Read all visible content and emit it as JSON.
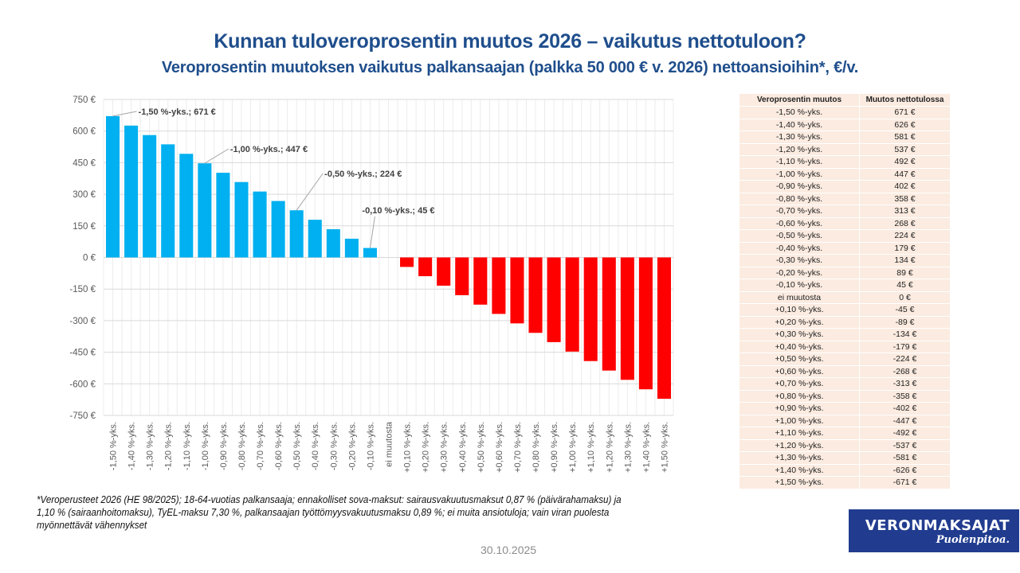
{
  "header": {
    "title": "Kunnan tuloveroprosentin muutos 2026 – vaikutus nettotuloon?",
    "subtitle": "Veroprosentin muutoksen vaikutus palkansaajan (palkka 50 000 € v. 2026) nettoansioihin*, €/v."
  },
  "chart_data": {
    "type": "bar",
    "title": "Veroprosentin muutoksen vaikutus palkansaajan (palkka 50 000 € v. 2026) nettoansioihin*, €/v.",
    "xlabel": "",
    "ylabel": "",
    "ylim": [
      -750,
      750
    ],
    "yticks": [
      750,
      600,
      450,
      300,
      150,
      0,
      -150,
      -300,
      -450,
      -600,
      -750
    ],
    "ytick_labels": [
      "750 €",
      "600 €",
      "450 €",
      "300 €",
      "150 €",
      "0 €",
      "-150 €",
      "-300 €",
      "-450 €",
      "-600 €",
      "-750 €"
    ],
    "grid": true,
    "legend": "none",
    "positive_color": "#00b0f0",
    "negative_color": "#ff0000",
    "categories": [
      "-1,50 %-yks.",
      "-1,40 %-yks.",
      "-1,30 %-yks.",
      "-1,20 %-yks.",
      "-1,10 %-yks.",
      "-1,00 %-yks.",
      "-0,90 %-yks.",
      "-0,80 %-yks.",
      "-0,70 %-yks.",
      "-0,60 %-yks.",
      "-0,50 %-yks.",
      "-0,40 %-yks.",
      "-0,30 %-yks.",
      "-0,20 %-yks.",
      "-0,10 %-yks.",
      "ei muutosta",
      "+0,10 %-yks.",
      "+0,20 %-yks.",
      "+0,30 %-yks.",
      "+0,40 %-yks.",
      "+0,50 %-yks.",
      "+0,60 %-yks.",
      "+0,70 %-yks.",
      "+0,80 %-yks.",
      "+0,90 %-yks.",
      "+1,00 %-yks.",
      "+1,10 %-yks.",
      "+1,20 %-yks.",
      "+1,30 %-yks.",
      "+1,40 %-yks.",
      "+1,50 %-yks."
    ],
    "values": [
      671,
      626,
      581,
      537,
      492,
      447,
      402,
      358,
      313,
      268,
      224,
      179,
      134,
      89,
      45,
      0,
      -45,
      -89,
      -134,
      -179,
      -224,
      -268,
      -313,
      -358,
      -402,
      -447,
      -492,
      -537,
      -581,
      -626,
      -671
    ],
    "annotations": [
      {
        "index": 0,
        "text": "-1,50 %-yks.;  671 €"
      },
      {
        "index": 5,
        "text": "-1,00 %-yks.;  447 €"
      },
      {
        "index": 10,
        "text": "-0,50 %-yks.;  224 €"
      },
      {
        "index": 14,
        "text": "-0,10 %-yks.;  45 €"
      }
    ]
  },
  "table": {
    "headers": [
      "Veroprosentin muutos",
      "Muutos nettotulossa"
    ],
    "rows": [
      [
        "-1,50 %-yks.",
        "671 €"
      ],
      [
        "-1,40 %-yks.",
        "626 €"
      ],
      [
        "-1,30 %-yks.",
        "581 €"
      ],
      [
        "-1,20 %-yks.",
        "537 €"
      ],
      [
        "-1,10 %-yks.",
        "492 €"
      ],
      [
        "-1,00 %-yks.",
        "447 €"
      ],
      [
        "-0,90 %-yks.",
        "402 €"
      ],
      [
        "-0,80 %-yks.",
        "358 €"
      ],
      [
        "-0,70 %-yks.",
        "313 €"
      ],
      [
        "-0,60 %-yks.",
        "268 €"
      ],
      [
        "-0,50 %-yks.",
        "224 €"
      ],
      [
        "-0,40 %-yks.",
        "179 €"
      ],
      [
        "-0,30 %-yks.",
        "134 €"
      ],
      [
        "-0,20 %-yks.",
        "89 €"
      ],
      [
        "-0,10 %-yks.",
        "45 €"
      ],
      [
        "ei muutosta",
        "0 €"
      ],
      [
        "+0,10 %-yks.",
        "-45 €"
      ],
      [
        "+0,20 %-yks.",
        "-89 €"
      ],
      [
        "+0,30 %-yks.",
        "-134 €"
      ],
      [
        "+0,40 %-yks.",
        "-179 €"
      ],
      [
        "+0,50 %-yks.",
        "-224 €"
      ],
      [
        "+0,60 %-yks.",
        "-268 €"
      ],
      [
        "+0,70 %-yks.",
        "-313 €"
      ],
      [
        "+0,80 %-yks.",
        "-358 €"
      ],
      [
        "+0,90 %-yks.",
        "-402 €"
      ],
      [
        "+1,00 %-yks.",
        "-447 €"
      ],
      [
        "+1,10 %-yks.",
        "-492 €"
      ],
      [
        "+1,20 %-yks.",
        "-537 €"
      ],
      [
        "+1,30 %-yks.",
        "-581 €"
      ],
      [
        "+1,40 %-yks.",
        "-626 €"
      ],
      [
        "+1,50 %-yks.",
        "-671 €"
      ]
    ]
  },
  "footnote": "*Veroperusteet 2026 (HE 98/2025); 18-64-vuotias palkansaaja; ennakolliset sova-maksut: sairausvakuutusmaksut 0,87 % (päivärahamaksu) ja 1,10 % (sairaanhoitomaksu), TyEL-maksu 7,30 %, palkansaajan työttömyysvakuutusmaksu 0,89 %; ei muita ansiotuloja; vain viran puolesta myönnettävät vähennykset",
  "date": "30.10.2025",
  "logo": {
    "name": "VERONMAKSAJAT",
    "tagline": "Puolenpitoa."
  }
}
